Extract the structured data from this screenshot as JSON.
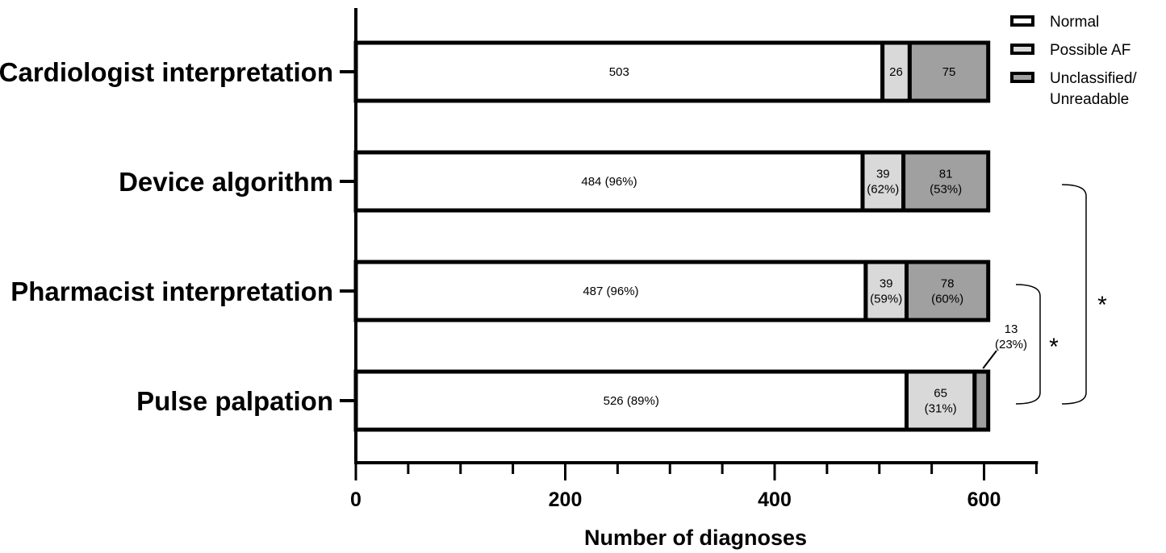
{
  "chart_data": {
    "type": "bar",
    "orientation": "horizontal",
    "stacked": true,
    "categories": [
      "Cardiologist interpretation",
      "Device algorithm",
      "Pharmacist interpretation",
      "Pulse palpation"
    ],
    "series": [
      {
        "name": "Normal",
        "color": "#ffffff",
        "values": [
          503,
          484,
          487,
          526
        ],
        "labels": [
          [
            "503"
          ],
          [
            "484 (96%)"
          ],
          [
            "487 (96%)"
          ],
          [
            "526 (89%)"
          ]
        ]
      },
      {
        "name": "Possible AF",
        "color": "#d9d9d9",
        "values": [
          26,
          39,
          39,
          65
        ],
        "labels": [
          [
            "26"
          ],
          [
            "39",
            "(62%)"
          ],
          [
            "39",
            "(59%)"
          ],
          [
            "65",
            "(31%)"
          ]
        ]
      },
      {
        "name": "Unclassified/\nUnreadable",
        "color": "#a0a0a0",
        "values": [
          75,
          81,
          78,
          13
        ],
        "labels": [
          [
            "75"
          ],
          [
            "81",
            "(53%)"
          ],
          [
            "78",
            "(60%)"
          ],
          [
            "13",
            "(23%)"
          ]
        ]
      }
    ],
    "legend": {
      "position": "top-right",
      "entries": [
        [
          "Normal"
        ],
        [
          "Possible AF"
        ],
        [
          "Unclassified/",
          "Unreadable"
        ]
      ]
    },
    "xlabel": "Number of diagnoses",
    "xlim": [
      0,
      650
    ],
    "xticks": [
      0,
      200,
      400,
      600
    ],
    "xtick_labels": [
      "0",
      "200",
      "400",
      "600"
    ],
    "minor_tick_step": 50,
    "grid": false,
    "significance": [
      {
        "from": "Device algorithm",
        "to": "Pulse palpation",
        "label": "*"
      },
      {
        "from": "Pharmacist interpretation",
        "to": "Pulse palpation",
        "label": "*"
      }
    ]
  }
}
